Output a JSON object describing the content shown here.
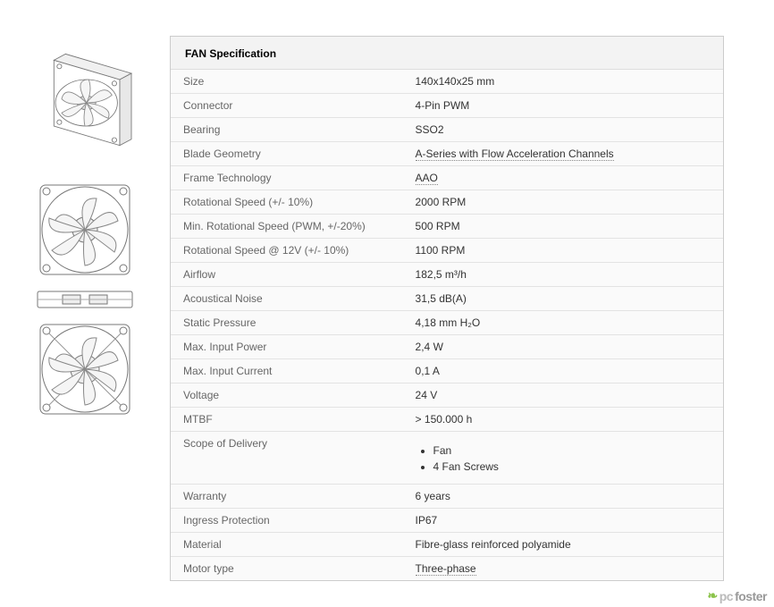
{
  "spec": {
    "title": "FAN Specification",
    "rows": [
      {
        "label": "Size",
        "value": "140x140x25 mm",
        "dotted": false
      },
      {
        "label": "Connector",
        "value": "4-Pin PWM",
        "dotted": false
      },
      {
        "label": "Bearing",
        "value": "SSO2",
        "dotted": false
      },
      {
        "label": "Blade Geometry",
        "value": "A-Series with Flow Acceleration Channels",
        "dotted": true
      },
      {
        "label": "Frame Technology",
        "value": "AAO",
        "dotted": true
      },
      {
        "label": "Rotational Speed (+/- 10%)",
        "value": "2000 RPM",
        "dotted": false
      },
      {
        "label": "Min. Rotational Speed (PWM, +/-20%)",
        "value": "500 RPM",
        "dotted": false
      },
      {
        "label": "Rotational Speed @ 12V (+/- 10%)",
        "value": "1100 RPM",
        "dotted": false
      },
      {
        "label": "Airflow",
        "value": "182,5 m³/h",
        "dotted": false
      },
      {
        "label": "Acoustical Noise",
        "value": "31,5 dB(A)",
        "dotted": false
      },
      {
        "label": "Static Pressure",
        "value": "4,18 mm H₂O",
        "dotted": false
      },
      {
        "label": "Max. Input Power",
        "value": "2,4 W",
        "dotted": false
      },
      {
        "label": "Max. Input Current",
        "value": "0,1 A",
        "dotted": false
      },
      {
        "label": "Voltage",
        "value": "24 V",
        "dotted": false
      },
      {
        "label": "MTBF",
        "value": "> 150.000 h",
        "dotted": false
      }
    ],
    "scope_label": "Scope of Delivery",
    "scope_items": [
      "Fan",
      "4 Fan Screws"
    ],
    "rows_after": [
      {
        "label": "Warranty",
        "value": "6 years",
        "dotted": false
      },
      {
        "label": "Ingress Protection",
        "value": "IP67",
        "dotted": false
      },
      {
        "label": "Material",
        "value": "Fibre-glass reinforced polyamide",
        "dotted": false
      },
      {
        "label": "Motor type",
        "value": "Three-phase",
        "dotted": true
      }
    ]
  },
  "images": {
    "items": [
      {
        "name": "fan-isometric-view",
        "type": "iso"
      },
      {
        "name": "fan-front-view",
        "type": "front"
      },
      {
        "name": "fan-side-view",
        "type": "side"
      },
      {
        "name": "fan-back-view",
        "type": "front"
      }
    ]
  },
  "watermark": {
    "pc": "pc",
    "foster": "foster"
  },
  "style": {
    "line_color": "#777",
    "fill_color": "#fff",
    "border_color": "#ccc",
    "table_border": "#e3e3e3",
    "label_color": "#666",
    "value_color": "#333",
    "title_bg": "#f3f3f3"
  }
}
